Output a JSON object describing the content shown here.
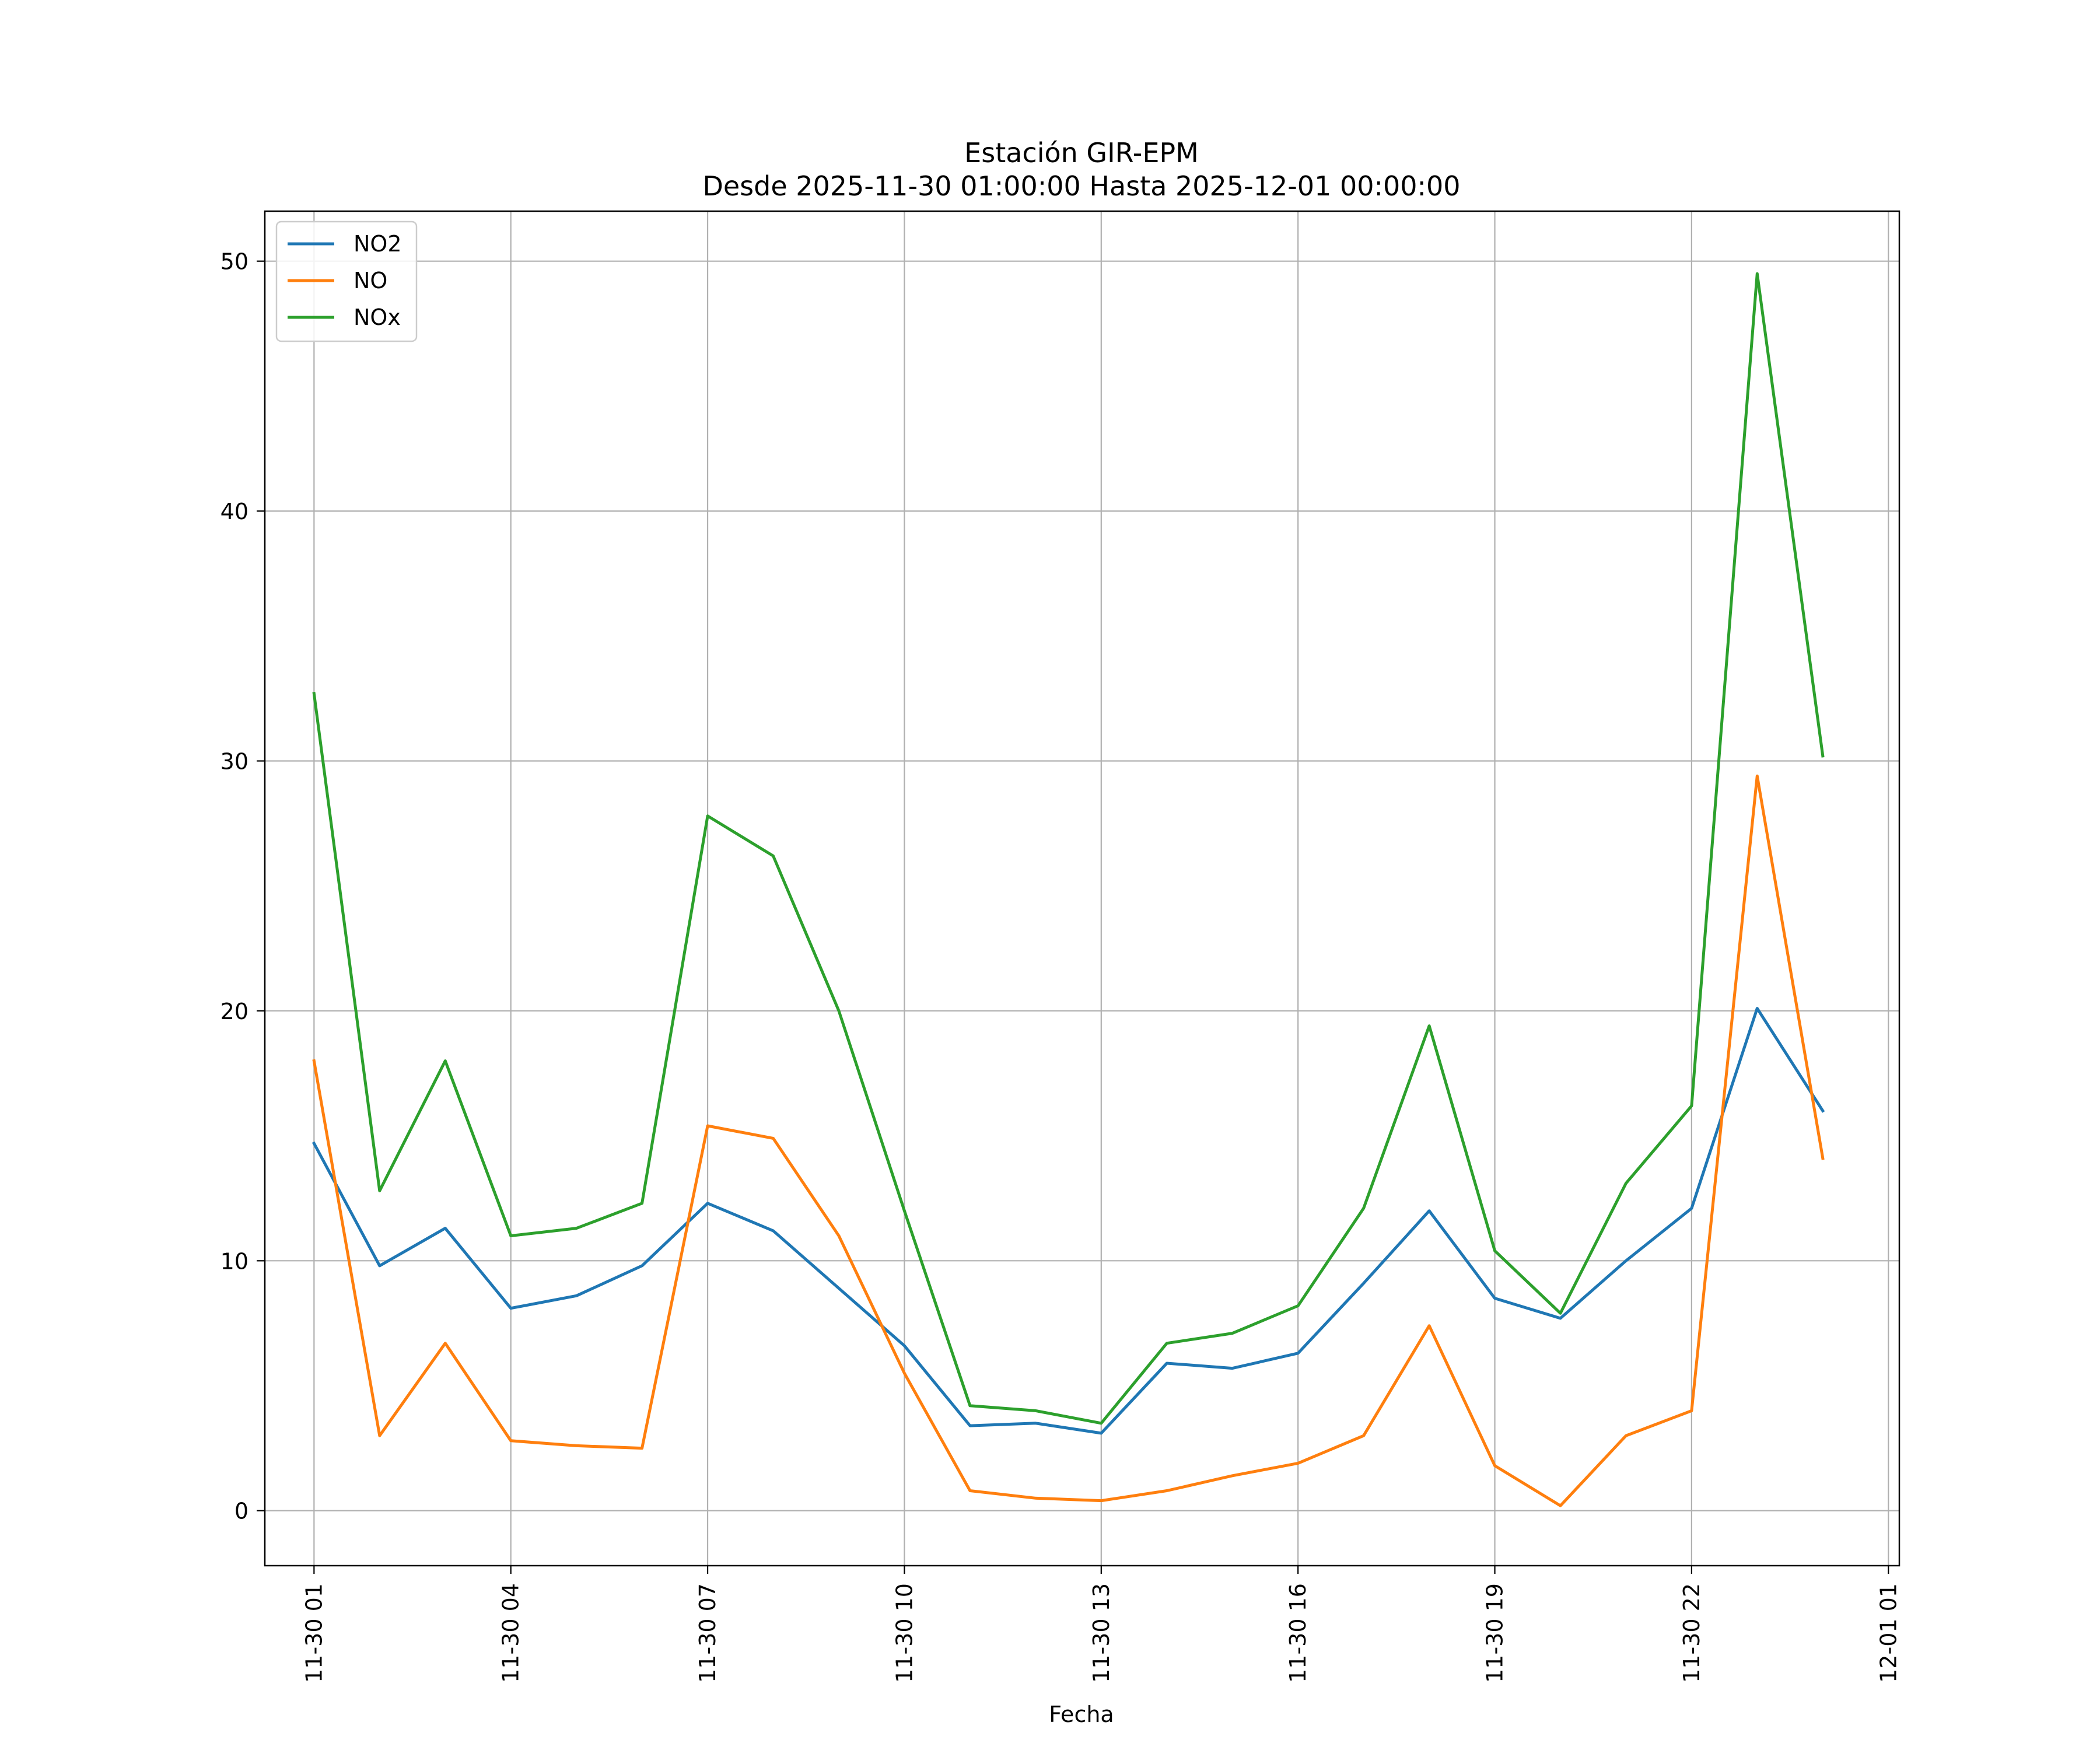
{
  "chart_data": {
    "type": "line",
    "title": "Estación GIR-EPM",
    "subtitle": "Desde 2025-11-30 01:00:00 Hasta 2025-12-01 00:00:00",
    "xlabel": "Fecha",
    "ylabel": "",
    "x": [
      "11-30 01",
      "11-30 02",
      "11-30 03",
      "11-30 04",
      "11-30 05",
      "11-30 06",
      "11-30 07",
      "11-30 08",
      "11-30 09",
      "11-30 10",
      "11-30 11",
      "11-30 12",
      "11-30 13",
      "11-30 14",
      "11-30 15",
      "11-30 16",
      "11-30 17",
      "11-30 18",
      "11-30 19",
      "11-30 20",
      "11-30 21",
      "11-30 22",
      "11-30 23",
      "12-01 00"
    ],
    "x_ticks": [
      "11-30 01",
      "11-30 04",
      "11-30 07",
      "11-30 10",
      "11-30 13",
      "11-30 16",
      "11-30 19",
      "11-30 22",
      "12-01 01"
    ],
    "xlim": [
      "11-30 00:15",
      "12-01 01:10"
    ],
    "ylim": [
      -2.2,
      52
    ],
    "y_ticks": [
      0,
      10,
      20,
      30,
      40,
      50
    ],
    "grid": true,
    "legend_position": "top-left",
    "series": [
      {
        "name": "NO2",
        "color": "#1f77b4",
        "values": [
          14.7,
          9.8,
          11.3,
          8.1,
          8.6,
          9.8,
          12.3,
          11.2,
          8.9,
          6.6,
          3.4,
          3.5,
          3.1,
          5.9,
          5.7,
          6.3,
          9.1,
          12.0,
          8.5,
          7.7,
          10.0,
          12.1,
          20.1,
          16.0
        ]
      },
      {
        "name": "NO",
        "color": "#ff7f0e",
        "values": [
          18.0,
          3.0,
          6.7,
          2.8,
          2.6,
          2.5,
          15.4,
          14.9,
          11.0,
          5.5,
          0.8,
          0.5,
          0.4,
          0.8,
          1.4,
          1.9,
          3.0,
          7.4,
          1.8,
          0.2,
          3.0,
          4.0,
          29.4,
          14.1
        ]
      },
      {
        "name": "NOx",
        "color": "#2ca02c",
        "values": [
          32.7,
          12.8,
          18.0,
          11.0,
          11.3,
          12.3,
          27.8,
          26.2,
          20.0,
          12.0,
          4.2,
          4.0,
          3.5,
          6.7,
          7.1,
          8.2,
          12.1,
          19.4,
          10.4,
          7.9,
          13.1,
          16.2,
          49.5,
          30.2
        ]
      }
    ]
  }
}
